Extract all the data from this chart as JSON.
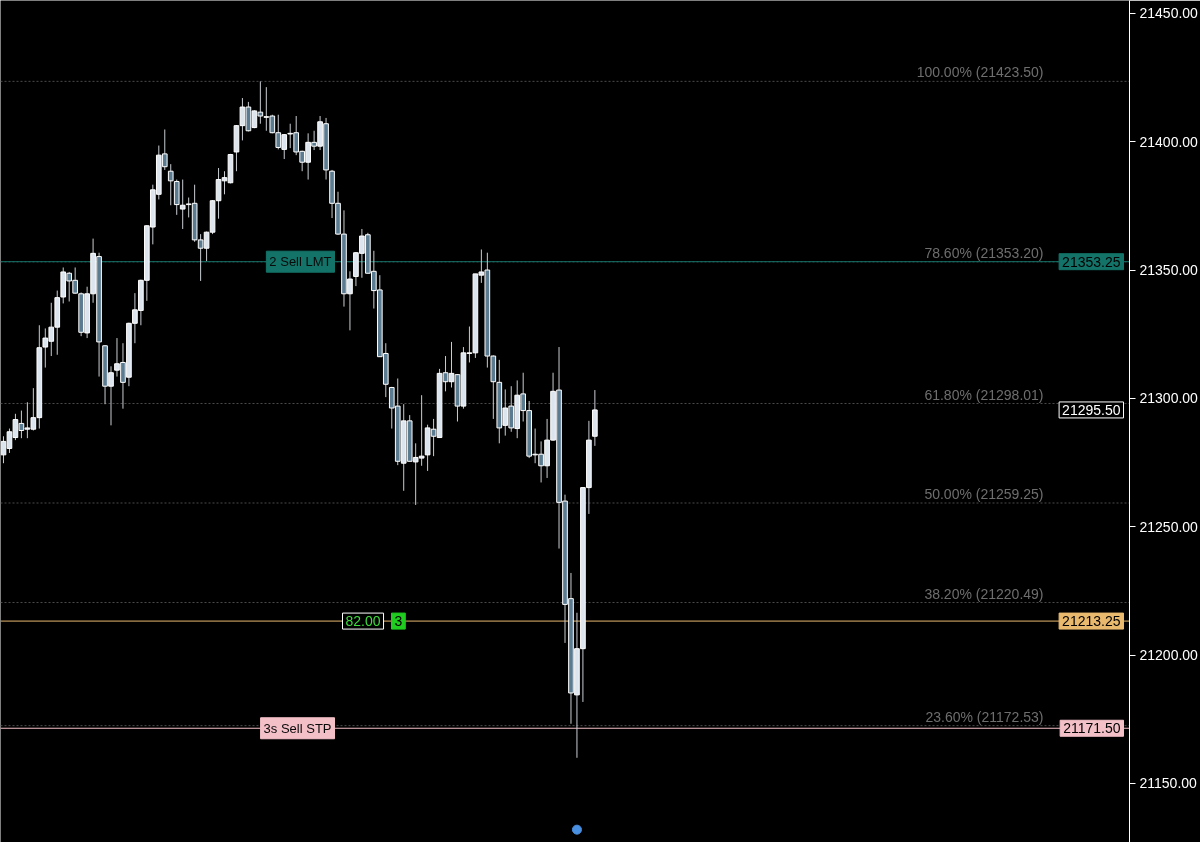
{
  "chart_data": {
    "type": "candlestick",
    "categories": [
      null,
      null,
      null,
      null,
      null,
      null,
      null,
      null,
      null,
      null,
      null,
      null,
      null,
      null,
      null,
      null,
      null,
      null,
      null,
      null,
      null,
      null,
      null,
      null,
      null,
      null,
      null,
      null,
      null,
      null,
      null,
      null,
      null,
      null,
      null,
      null,
      null,
      null,
      null,
      null,
      null,
      null,
      null,
      null,
      null,
      null,
      null,
      null,
      null,
      null,
      null,
      null,
      null,
      null,
      null,
      null,
      null,
      null,
      null,
      null,
      null,
      null,
      null,
      null,
      null,
      null,
      null,
      null,
      null,
      null,
      null,
      null,
      null,
      null,
      null,
      null,
      null,
      null,
      null,
      null,
      null,
      null,
      null,
      null,
      null,
      null,
      null,
      null,
      null,
      null,
      null,
      null,
      null,
      null,
      null,
      null,
      null,
      null,
      null,
      null,
      null,
      null,
      null,
      null,
      null,
      null,
      null,
      null,
      null,
      null,
      null,
      null,
      null,
      null,
      null,
      null,
      null,
      null,
      null,
      null,
      null,
      null,
      null,
      null,
      null,
      null,
      null,
      null,
      null,
      null,
      null,
      null,
      null,
      null,
      null,
      null,
      null,
      null,
      null,
      null,
      null,
      null,
      null,
      null,
      null,
      null,
      null,
      null,
      null,
      null,
      null,
      null,
      null,
      null,
      null,
      null,
      null,
      null,
      null,
      null,
      null,
      null,
      null,
      null,
      null,
      null,
      null,
      null,
      null,
      null,
      null,
      null,
      null,
      null,
      null,
      null,
      null,
      null,
      null,
      null,
      null,
      null,
      null,
      null,
      null,
      null,
      null,
      null,
      null
    ],
    "ohlc": [
      [
        21278,
        21285.25,
        21274.75,
        21283.25
      ],
      [
        21280.5,
        21288.25,
        21278.75,
        21287
      ],
      [
        21284.75,
        21294,
        21283.75,
        21291.75
      ],
      [
        21290.25,
        21295.25,
        21284.5,
        21287.5
      ],
      [
        21288,
        21298.5,
        21284.5,
        21288.5
      ],
      [
        21288,
        21304,
        21287.5,
        21292.5
      ],
      [
        21292.5,
        21328.5,
        21288.25,
        21319.75
      ],
      [
        21320,
        21327.25,
        21312,
        21323.5
      ],
      [
        21322.25,
        21337.25,
        21316.5,
        21327.75
      ],
      [
        21327.75,
        21342,
        21317,
        21339.25
      ],
      [
        21339.5,
        21351,
        21337,
        21349.25
      ],
      [
        21348.75,
        21349.25,
        21337.75,
        21345.75
      ],
      [
        21346,
        21351,
        21340.75,
        21341
      ],
      [
        21340.75,
        21341.25,
        21324.25,
        21325.75
      ],
      [
        21325.5,
        21343.5,
        21323.5,
        21340.75
      ],
      [
        21340.75,
        21362.25,
        21337.25,
        21356.5
      ],
      [
        21355.25,
        21356.75,
        21308.5,
        21322
      ],
      [
        21320.5,
        21320.75,
        21297.75,
        21304.75
      ],
      [
        21304.75,
        21312.5,
        21289.5,
        21310
      ],
      [
        21311,
        21323.5,
        21308.5,
        21313.5
      ],
      [
        21314,
        21321.5,
        21296,
        21306.25
      ],
      [
        21308.25,
        21329.5,
        21304.75,
        21329.25
      ],
      [
        21329.25,
        21341,
        21321.5,
        21334.5
      ],
      [
        21334.25,
        21346.25,
        21328.5,
        21346
      ],
      [
        21346,
        21367.5,
        21338,
        21367.25
      ],
      [
        21366.75,
        21383.25,
        21360,
        21381.25
      ],
      [
        21379.5,
        21398.5,
        21377.5,
        21394.75
      ],
      [
        21395.25,
        21404.75,
        21389,
        21390.25
      ],
      [
        21388.5,
        21391.25,
        21375.25,
        21384.75
      ],
      [
        21384.5,
        21385.25,
        21371.5,
        21375.5
      ],
      [
        21373.75,
        21385.25,
        21366,
        21375.25
      ],
      [
        21375.5,
        21378.25,
        21370.5,
        21375.75
      ],
      [
        21376,
        21383.25,
        21361,
        21361.75
      ],
      [
        21361.75,
        21364,
        21345.75,
        21358.5
      ],
      [
        21358.5,
        21365,
        21353.5,
        21364.75
      ],
      [
        21364.75,
        21377.25,
        21364,
        21377
      ],
      [
        21377,
        21389.75,
        21370,
        21385.25
      ],
      [
        21384.75,
        21388.5,
        21379.5,
        21386
      ],
      [
        21384,
        21395.25,
        21383.75,
        21395
      ],
      [
        21396,
        21406.5,
        21388.5,
        21406.25
      ],
      [
        21406.25,
        21417,
        21400.5,
        21413.5
      ],
      [
        21413.5,
        21415.5,
        21404,
        21404.25
      ],
      [
        21405.5,
        21412.25,
        21405.25,
        21412
      ],
      [
        21411.5,
        21423.5,
        21407,
        21410
      ],
      [
        21409.5,
        21421.25,
        21404.25,
        21409.75
      ],
      [
        21410,
        21410.5,
        21403.25,
        21403.5
      ],
      [
        21403.5,
        21410.5,
        21397,
        21397.75
      ],
      [
        21397,
        21403,
        21393.25,
        21402.75
      ],
      [
        21403,
        21407,
        21397.5,
        21403.25
      ],
      [
        21403.5,
        21410,
        21394.75,
        21396
      ],
      [
        21396.25,
        21396.5,
        21388.5,
        21392
      ],
      [
        21392,
        21403.25,
        21385.25,
        21399.75
      ],
      [
        21399.75,
        21404.25,
        21396.75,
        21398.25
      ],
      [
        21398.25,
        21410,
        21396.75,
        21407.75
      ],
      [
        21407,
        21409.25,
        21385.25,
        21389
      ],
      [
        21388.5,
        21389,
        21370.25,
        21376
      ],
      [
        21376,
        21380.5,
        21363.75,
        21364
      ],
      [
        21364,
        21373.25,
        21335.75,
        21340.75
      ],
      [
        21340.75,
        21349.5,
        21326.5,
        21346.5
      ],
      [
        21347.5,
        21357,
        21343.75,
        21356.75
      ],
      [
        21356.5,
        21366,
        21347,
        21363.25
      ],
      [
        21363.75,
        21364.5,
        21348.75,
        21348.75
      ],
      [
        21349.5,
        21357.5,
        21335,
        21342
      ],
      [
        21342.25,
        21348,
        21316.25,
        21316.25
      ],
      [
        21317.5,
        21321.5,
        21300.5,
        21305.5
      ],
      [
        21304.25,
        21304.5,
        21288.25,
        21296.25
      ],
      [
        21297,
        21307.75,
        21274,
        21275.5
      ],
      [
        21274.75,
        21297.75,
        21264,
        21291.25
      ],
      [
        21291.25,
        21293.5,
        21275.5,
        21275.5
      ],
      [
        21275.25,
        21282.5,
        21258.5,
        21277
      ],
      [
        21276.75,
        21301.25,
        21273.75,
        21277.5
      ],
      [
        21278,
        21289.75,
        21271.75,
        21288.5
      ],
      [
        21288,
        21292,
        21277.5,
        21285.25
      ],
      [
        21284.75,
        21311.5,
        21284.75,
        21309.75
      ],
      [
        21310,
        21316.5,
        21302.75,
        21306.5
      ],
      [
        21306.5,
        21322,
        21304.25,
        21309.75
      ],
      [
        21309.25,
        21309.5,
        21291,
        21297
      ],
      [
        21297,
        21320,
        21296,
        21317.75
      ],
      [
        21317.5,
        21328,
        21314,
        21317.75
      ],
      [
        21317.75,
        21348.5,
        21315.75,
        21348.5
      ],
      [
        21348,
        21358,
        21345,
        21349.25
      ],
      [
        21350,
        21356.75,
        21312,
        21316.5
      ],
      [
        21316.5,
        21316.75,
        21292,
        21306.5
      ],
      [
        21306.25,
        21315,
        21282.5,
        21288.5
      ],
      [
        21289.5,
        21303.5,
        21285.5,
        21296.25
      ],
      [
        21297,
        21304.75,
        21287,
        21288.5
      ],
      [
        21288.25,
        21307,
        21284.5,
        21301.25
      ],
      [
        21301.75,
        21310,
        21291,
        21295.25
      ],
      [
        21295.25,
        21299,
        21276.75,
        21277.5
      ],
      [
        21278.25,
        21288.25,
        21274.75,
        21278
      ],
      [
        21278.25,
        21283.25,
        21267.25,
        21273.75
      ],
      [
        21273.75,
        21292,
        21269,
        21283.75
      ],
      [
        21283.75,
        21310,
        21283.5,
        21302.75
      ],
      [
        21303.25,
        21320,
        21241.5,
        21259.5
      ],
      [
        21260,
        21262.5,
        21204.75,
        21219.75
      ],
      [
        21222,
        21232,
        21173.25,
        21185.25
      ],
      [
        21184.5,
        21216.5,
        21160,
        21202.5
      ],
      [
        21202.5,
        21265.25,
        21181.75,
        21265.25
      ],
      [
        21265.25,
        21291.25,
        21255,
        21283.75
      ],
      [
        21285.25,
        21303.25,
        21281.5,
        21295.5
      ],
      null,
      null,
      null,
      null,
      null,
      null,
      null,
      null,
      null,
      null,
      null,
      null,
      null,
      null,
      null,
      null,
      null,
      null,
      null,
      null,
      null,
      null,
      null,
      null,
      null,
      null,
      null,
      null,
      null,
      null,
      null,
      null,
      null,
      null,
      null,
      null,
      null,
      null,
      null,
      null,
      null,
      null,
      null,
      null,
      null,
      null,
      null,
      null,
      null,
      null,
      null,
      null,
      null,
      null,
      null,
      null,
      null,
      null,
      null,
      null,
      null,
      null,
      null,
      null,
      null,
      null,
      null,
      null,
      null,
      null,
      null,
      null,
      null,
      null,
      null,
      null,
      null,
      null,
      null,
      null,
      null,
      null,
      null,
      null,
      null,
      null,
      null,
      null,
      null
    ],
    "colors": [
      "#dce4ee",
      "#dce4ee",
      "#dce4ee",
      "#5b7b91",
      "#dce4ee",
      "#dce4ee",
      "#dce4ee",
      "#dce4ee",
      "#dce4ee",
      "#dce4ee",
      "#dce4ee",
      "#5b7b91",
      "#5b7b91",
      "#5b7b91",
      "#dce4ee",
      "#dce4ee",
      "#5b7b91",
      "#5b7b91",
      "#dce4ee",
      "#dce4ee",
      "#5b7b91",
      "#dce4ee",
      "#dce4ee",
      "#dce4ee",
      "#dce4ee",
      "#dce4ee",
      "#dce4ee",
      "#5b7b91",
      "#5b7b91",
      "#5b7b91",
      "#dce4ee",
      "#dce4ee",
      "#5b7b91",
      "#5b7b91",
      "#dce4ee",
      "#dce4ee",
      "#dce4ee",
      "#dce4ee",
      "#dce4ee",
      "#dce4ee",
      "#dce4ee",
      "#5b7b91",
      "#dce4ee",
      "#5b7b91",
      "#dce4ee",
      "#5b7b91",
      "#5b7b91",
      "#dce4ee",
      "#dce4ee",
      "#5b7b91",
      "#5b7b91",
      "#dce4ee",
      "#5b7b91",
      "#dce4ee",
      "#5b7b91",
      "#5b7b91",
      "#5b7b91",
      "#5b7b91",
      "#dce4ee",
      "#dce4ee",
      "#dce4ee",
      "#5b7b91",
      "#5b7b91",
      "#5b7b91",
      "#5b7b91",
      "#5b7b91",
      "#5b7b91",
      "#dce4ee",
      "#5b7b91",
      "#dce4ee",
      "#dce4ee",
      "#dce4ee",
      "#5b7b91",
      "#dce4ee",
      "#5b7b91",
      "#dce4ee",
      "#5b7b91",
      "#dce4ee",
      "#dce4ee",
      "#dce4ee",
      "#dce4ee",
      "#5b7b91",
      "#5b7b91",
      "#5b7b91",
      "#dce4ee",
      "#5b7b91",
      "#dce4ee",
      "#5b7b91",
      "#5b7b91",
      "#5b7b91",
      "#5b7b91",
      "#dce4ee",
      "#dce4ee",
      "#5b7b91",
      "#5b7b91",
      "#5b7b91",
      "#dce4ee",
      "#dce4ee",
      "#dce4ee",
      "#dce4ee",
      null,
      null,
      null,
      null,
      null,
      null,
      null,
      null,
      null,
      null,
      null,
      null,
      null,
      null,
      null,
      null,
      null,
      null,
      null,
      null,
      null,
      null,
      null,
      null,
      null,
      null,
      null,
      null,
      null,
      null,
      null,
      null,
      null,
      null,
      null,
      null,
      null,
      null,
      null,
      null,
      null,
      null,
      null,
      null,
      null,
      null,
      null,
      null,
      null,
      null,
      null,
      null,
      null,
      null,
      null,
      null,
      null,
      null,
      null,
      null,
      null,
      null,
      null,
      null,
      null,
      null,
      null,
      null,
      null,
      null,
      null,
      null,
      null,
      null,
      null,
      null,
      null,
      null,
      null,
      null,
      null,
      null,
      null,
      null,
      null,
      null,
      null,
      null,
      null
    ],
    "series": [
      {
        "type": "scatter",
        "color": "#4a90e2",
        "values": [
          null,
          null,
          null,
          null,
          null,
          null,
          null,
          null,
          null,
          null,
          null,
          null,
          null,
          null,
          null,
          null,
          null,
          null,
          null,
          null,
          null,
          null,
          null,
          null,
          null,
          null,
          null,
          null,
          null,
          null,
          null,
          null,
          null,
          null,
          null,
          null,
          null,
          null,
          null,
          null,
          null,
          null,
          null,
          null,
          null,
          null,
          null,
          null,
          null,
          null,
          null,
          null,
          null,
          null,
          null,
          null,
          null,
          null,
          null,
          null,
          null,
          null,
          null,
          null,
          null,
          null,
          null,
          null,
          null,
          null,
          null,
          null,
          null,
          null,
          null,
          null,
          null,
          null,
          null,
          null,
          null,
          null,
          null,
          null,
          null,
          null,
          null,
          null,
          null,
          null,
          null,
          null,
          null,
          null,
          null,
          null,
          21132,
          null,
          null,
          null,
          null,
          null,
          null,
          null,
          null,
          null,
          null,
          null,
          null,
          null,
          null,
          null,
          null,
          null,
          null,
          null,
          null,
          null,
          null,
          null,
          null,
          null,
          null,
          null,
          null,
          null,
          null,
          null,
          null,
          null,
          null,
          null,
          null,
          null,
          null,
          null,
          null,
          null,
          null,
          null,
          null,
          null,
          null,
          null,
          null,
          null,
          null,
          null,
          null,
          null,
          null,
          null,
          null,
          null,
          null,
          null,
          null,
          null,
          null,
          null,
          null,
          null,
          null,
          null,
          null,
          null,
          null,
          null,
          null,
          null,
          null,
          null,
          null,
          null,
          null,
          null,
          null,
          null,
          null,
          null,
          null,
          null,
          null,
          null,
          null,
          null,
          null,
          null,
          null
        ]
      }
    ],
    "marker": "circle",
    "ylim": [
      21127,
      21455
    ],
    "yticks": [
      {
        "value": 21150,
        "label": "21150.00"
      },
      {
        "value": 21200,
        "label": "21200.00"
      },
      {
        "value": 21250,
        "label": "21250.00"
      },
      {
        "value": 21300,
        "label": "21300.00"
      },
      {
        "value": 21350,
        "label": "21350.00"
      },
      {
        "value": 21400,
        "label": "21400.00"
      },
      {
        "value": 21450,
        "label": "21450.00"
      }
    ],
    "tick_labels": "y",
    "ref_lines": [
      {
        "axis": "y",
        "value": 21423.5,
        "label": "100.00% (21423.50)",
        "color": "#4a4a4a",
        "line_style": "dotted"
      },
      {
        "axis": "y",
        "value": 21353.2,
        "label": "78.60% (21353.20)",
        "color": "#4a4a4a",
        "line_style": "dotted"
      },
      {
        "axis": "y",
        "value": 21298.01,
        "label": "61.80% (21298.01)",
        "color": "#4a4a4a",
        "line_style": "dotted"
      },
      {
        "axis": "y",
        "value": 21259.25,
        "label": "50.00% (21259.25)",
        "color": "#4a4a4a",
        "line_style": "dotted"
      },
      {
        "axis": "y",
        "value": 21220.49,
        "label": "38.20% (21220.49)",
        "color": "#4a4a4a",
        "line_style": "dotted"
      },
      {
        "axis": "y",
        "value": 21172.53,
        "label": "23.60% (21172.53)",
        "color": "#4a4a4a",
        "line_style": "dotted"
      },
      {
        "axis": "y",
        "value": 21353.25,
        "label": "21353.25",
        "color": "#137368",
        "line_style": "solid"
      },
      {
        "axis": "y",
        "value": 21213.25,
        "label": "21213.25",
        "color": "#e9b96e",
        "line_style": "solid"
      },
      {
        "axis": "y",
        "value": 21171.5,
        "label": "21171.50",
        "color": "#f4c0c8",
        "line_style": "solid"
      }
    ],
    "annotations": [
      {
        "text": "2 Sell LMT",
        "y": 21353.25
      },
      "21295.50",
      {
        "text": "82.00",
        "y": 21213.25
      },
      {
        "text": "3",
        "y": 21213.25
      },
      {
        "text": "3s Sell STP",
        "y": 21171.5
      }
    ]
  }
}
